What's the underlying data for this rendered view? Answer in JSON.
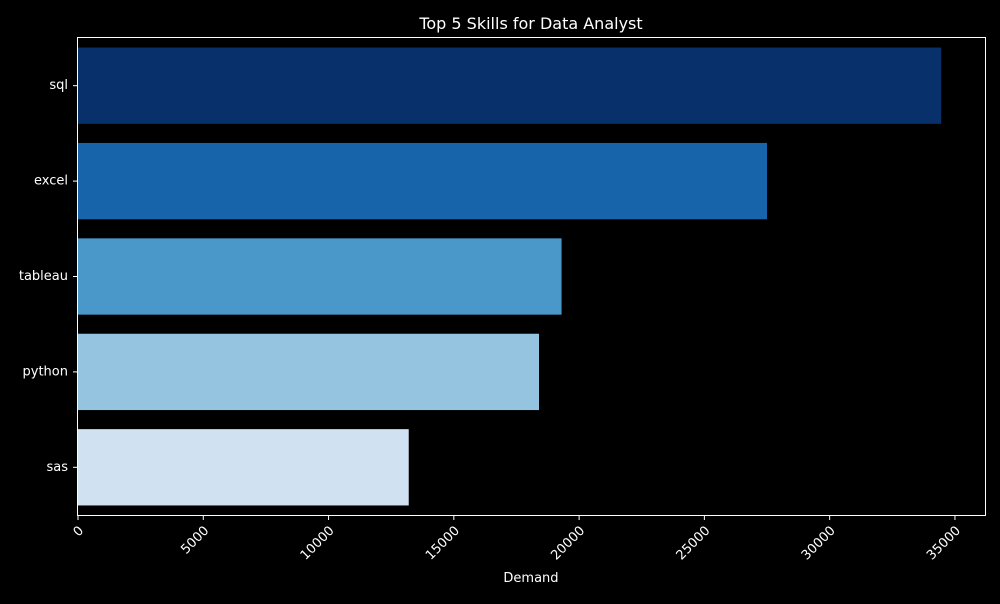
{
  "chart_data": {
    "type": "bar",
    "orientation": "horizontal",
    "title": "Top 5 Skills for Data Analyst",
    "xlabel": "Demand",
    "ylabel": "",
    "categories": [
      "sql",
      "excel",
      "tableau",
      "python",
      "sas"
    ],
    "values": [
      34450,
      27500,
      19300,
      18400,
      13200
    ],
    "xlim": [
      0,
      36200
    ],
    "xticks": [
      0,
      5000,
      10000,
      15000,
      20000,
      25000,
      30000,
      35000
    ],
    "xtick_labels": [
      "0",
      "5000",
      "10000",
      "15000",
      "20000",
      "25000",
      "30000",
      "35000"
    ],
    "bar_colors": [
      "#08306b",
      "#1764ab",
      "#4a98c9",
      "#94c4df",
      "#d0e1f2"
    ],
    "background_color": "#000000",
    "text_color": "#ffffff",
    "grid": false,
    "legend": "none"
  }
}
